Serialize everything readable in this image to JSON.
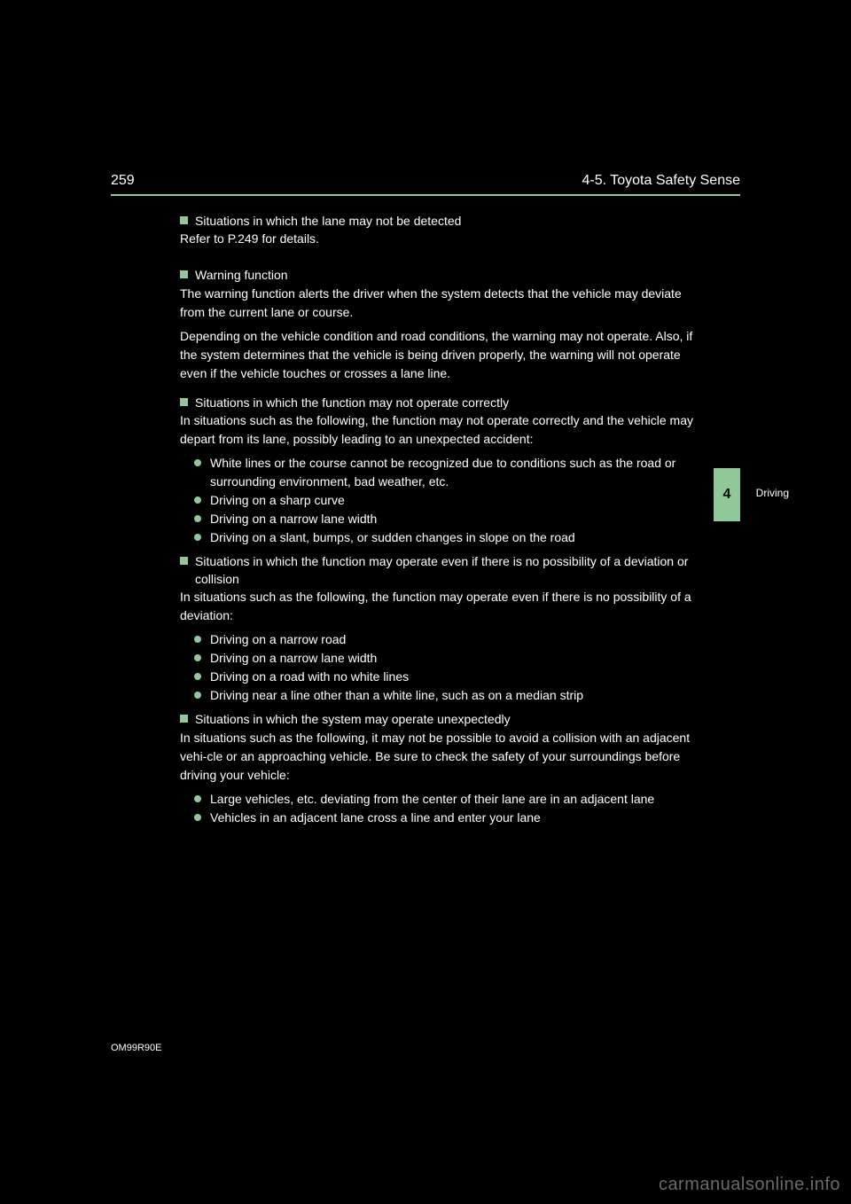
{
  "header": {
    "page_number": "259",
    "section_title": "4-5. Toyota Safety Sense"
  },
  "chapter": {
    "tab_number": "4",
    "tab_label": "Driving",
    "tab_bg": "#8fc99a",
    "tab_fg": "#000000"
  },
  "watermark": "carmanualsonline.info",
  "filecode": "OM99R90E",
  "accent_color": "#8fc99a",
  "background_color": "#000000",
  "text_color": "#fefefe",
  "sections": [
    {
      "type": "heading",
      "text": "Situations in which the lane may not be detected",
      "body": [
        "Refer to P.249 for details."
      ]
    },
    {
      "type": "heading",
      "text": "Warning function",
      "body": [
        "The warning function alerts the driver when the system detects that the vehicle may deviate from the current lane or course.",
        "Depending on the vehicle condition and road conditions, the warning may not operate. Also, if the system determines that the vehicle is being driven properly, the warning will not operate even if the vehicle touches or crosses a lane line."
      ]
    },
    {
      "type": "heading",
      "text": "Situations in which the function may not operate correctly",
      "body": [
        "In situations such as the following, the function may not operate correctly and the vehicle may depart from its lane, possibly leading to an unexpected accident:"
      ],
      "bullets": [
        "White lines or the course cannot be recognized due to conditions such as the road or surrounding environment, bad weather, etc.",
        "Driving on a sharp curve",
        "Driving on a narrow lane width",
        "Driving on a slant, bumps, or sudden changes in slope on the road"
      ]
    },
    {
      "type": "heading",
      "text": "Situations in which the function may operate even if there is no possibility of a deviation or collision",
      "body": [
        "In situations such as the following, the function may operate even if there is no possibility of a deviation:"
      ],
      "bullets": [
        "Driving on a narrow road",
        "Driving on a narrow lane width",
        "Driving on a road with no white lines",
        "Driving near a line other than a white line, such as on a median strip"
      ]
    },
    {
      "type": "heading",
      "text": "Situations in which the system may operate unexpectedly",
      "body": [
        "In situations such as the following, it may not be possible to avoid a collision with an adjacent vehi-cle or an approaching vehicle. Be sure to check the safety of your surroundings before driving your vehicle:"
      ],
      "bullets": [
        "Large vehicles, etc. deviating from the center of their lane are in an adjacent lane",
        "Vehicles in an adjacent lane cross a line and enter your lane"
      ]
    }
  ]
}
